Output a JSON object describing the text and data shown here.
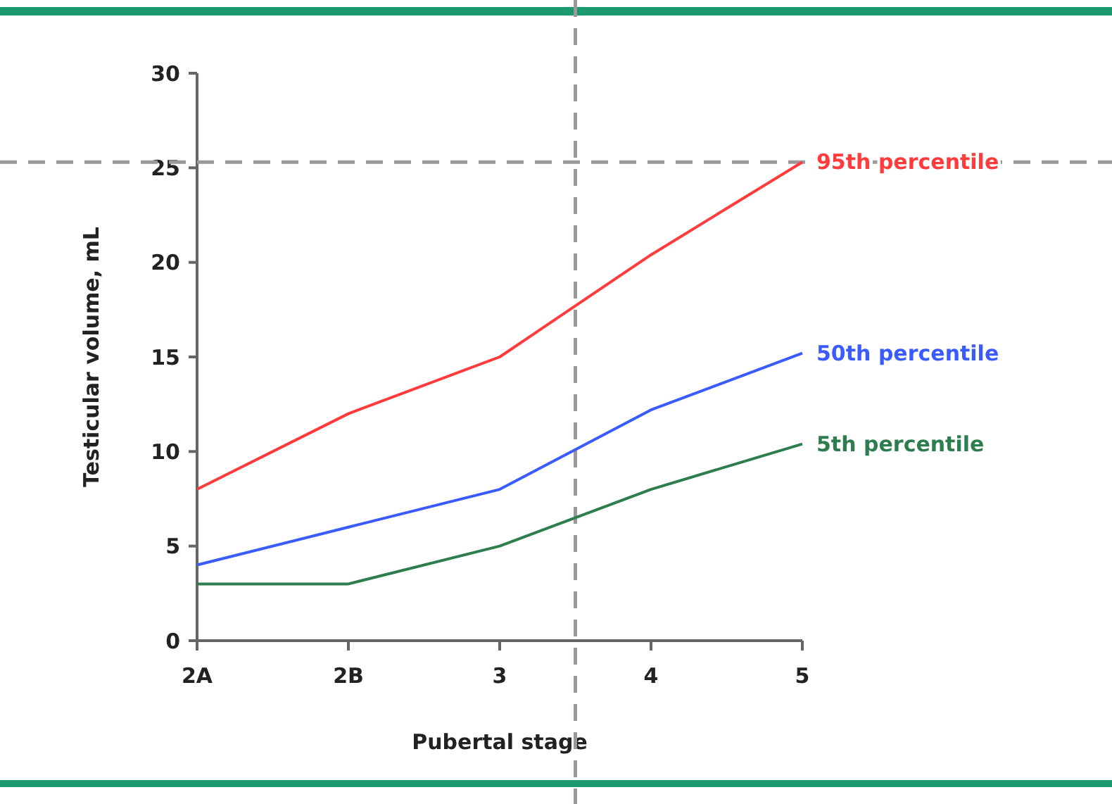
{
  "chart_data": {
    "type": "line",
    "xlabel": "Pubertal stage",
    "ylabel": "Testicular volume, mL",
    "categories": [
      "2A",
      "2B",
      "3",
      "4",
      "5"
    ],
    "series": [
      {
        "name": "95th percentile",
        "color": "#ff3b3b",
        "values": [
          8,
          12,
          15,
          20.4,
          25.3
        ]
      },
      {
        "name": "50th percentile",
        "color": "#3a5cff",
        "values": [
          4,
          6,
          8,
          12.2,
          15.2
        ]
      },
      {
        "name": "5th percentile",
        "color": "#2e7d4f",
        "values": [
          3,
          3,
          5,
          8,
          10.4
        ]
      }
    ],
    "ylim": [
      0,
      30
    ],
    "yticks": [
      0,
      5,
      10,
      15,
      20,
      25,
      30
    ],
    "grid": false,
    "legend": false,
    "marker": "none",
    "line_style": "solid",
    "ref_lines": [
      {
        "axis": "y",
        "value": 25.3,
        "label": null,
        "color": "#999999",
        "line_style": "dashed"
      }
    ]
  }
}
